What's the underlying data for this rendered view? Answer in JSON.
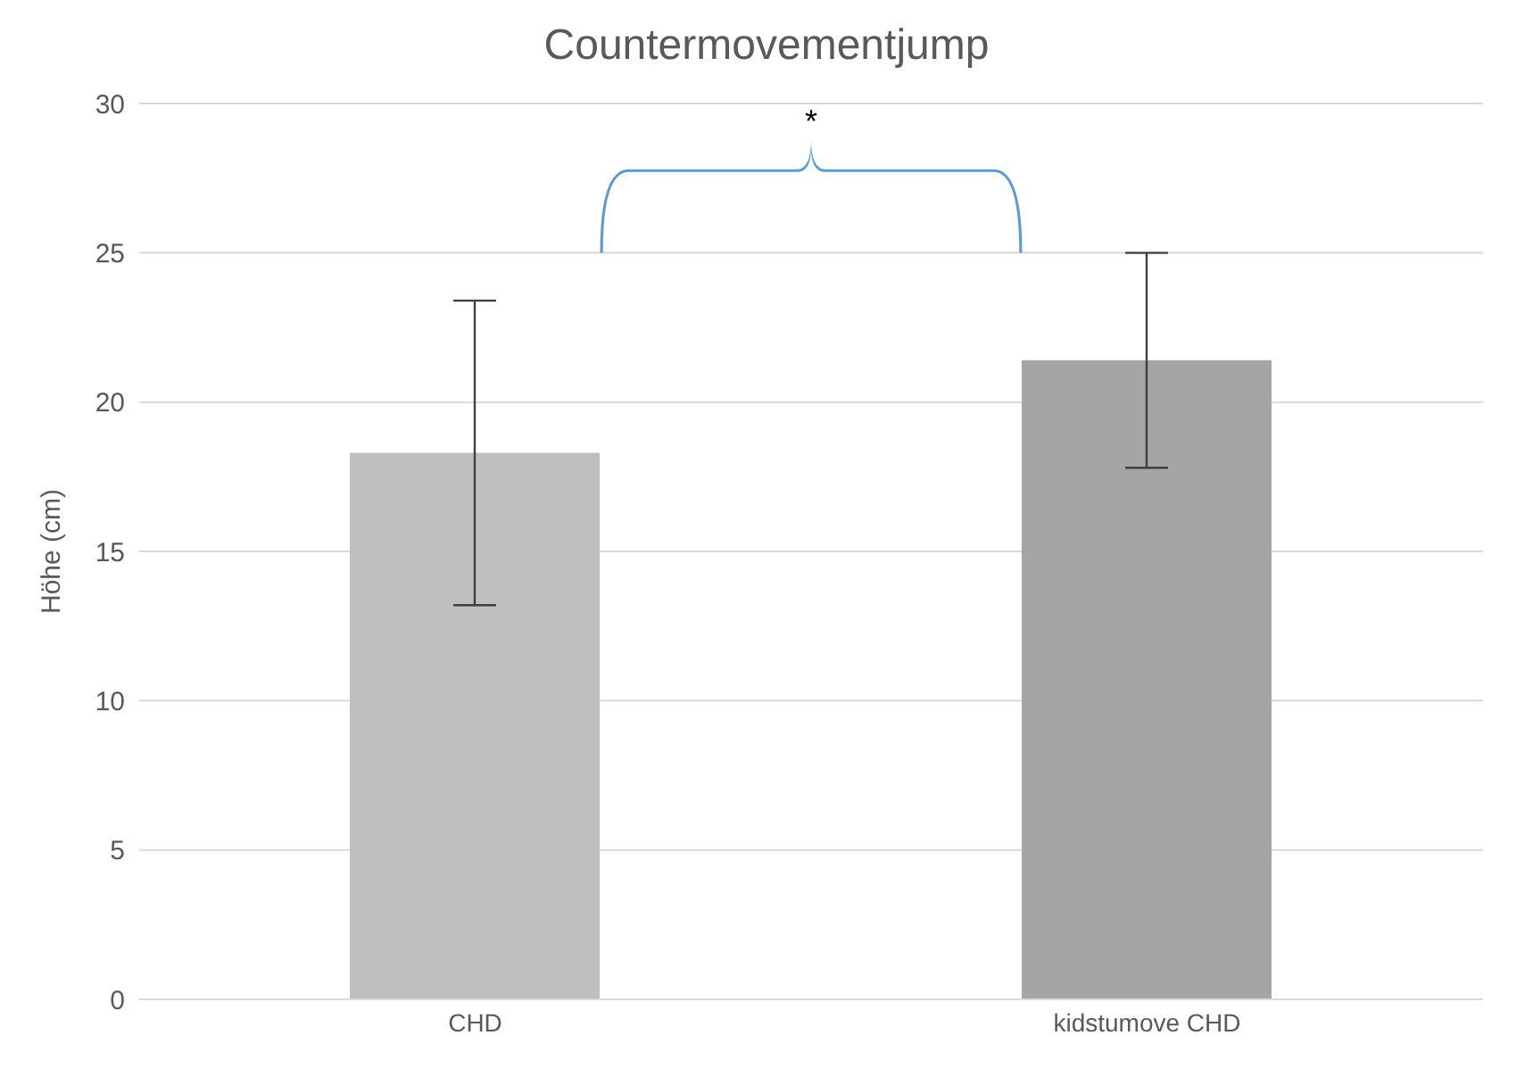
{
  "chart_data": {
    "type": "bar",
    "title": "Countermovementjump",
    "ylabel": "Höhe (cm)",
    "categories": [
      "CHD",
      "kidstumove CHD"
    ],
    "values": [
      18.3,
      21.4
    ],
    "errors": [
      5.1,
      3.6
    ],
    "colors": [
      "#bfbfbf",
      "#a5a5a5"
    ],
    "ylim": [
      0,
      30
    ],
    "yticks": [
      0,
      5,
      10,
      15,
      20,
      25,
      30
    ],
    "grid": "y",
    "annotations": [
      "*"
    ]
  }
}
